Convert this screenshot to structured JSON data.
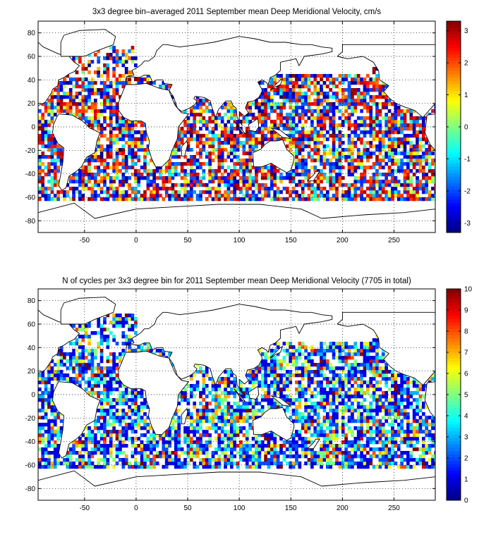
{
  "chart_data": [
    {
      "type": "heatmap",
      "title": "3x3 degree bin–averaged 2011 September mean Deep Meridional Velocity, cm/s",
      "xlabel": "",
      "ylabel": "",
      "xlim": [
        -95,
        290
      ],
      "ylim": [
        -90,
        90
      ],
      "x_ticks": [
        -50,
        0,
        50,
        100,
        150,
        200,
        250
      ],
      "y_ticks": [
        80,
        60,
        40,
        20,
        0,
        -20,
        -40,
        -60,
        -80
      ],
      "grid": true,
      "colorbar": {
        "range": [
          -3.3,
          3.3
        ],
        "ticks": [
          3,
          2,
          1,
          0,
          -1,
          -2,
          -3
        ],
        "colormap": "jet"
      },
      "bin_size_deg": 3,
      "seed": 11,
      "distribution": "diverging"
    },
    {
      "type": "heatmap",
      "title": "N of cycles per 3x3 degree bin for 2011 September mean Deep Meridional Velocity (7705 in total)",
      "xlabel": "",
      "ylabel": "",
      "xlim": [
        -95,
        290
      ],
      "ylim": [
        -90,
        90
      ],
      "x_ticks": [
        -50,
        0,
        50,
        100,
        150,
        200,
        250
      ],
      "y_ticks": [
        80,
        60,
        40,
        20,
        0,
        -20,
        -40,
        -60,
        -80
      ],
      "grid": true,
      "colorbar": {
        "range": [
          0,
          10
        ],
        "ticks": [
          10,
          9,
          8,
          7,
          6,
          5,
          4,
          3,
          2,
          1,
          0
        ],
        "colormap": "jet"
      },
      "bin_size_deg": 3,
      "total_cycles": 7705,
      "seed": 29,
      "distribution": "counts"
    }
  ]
}
